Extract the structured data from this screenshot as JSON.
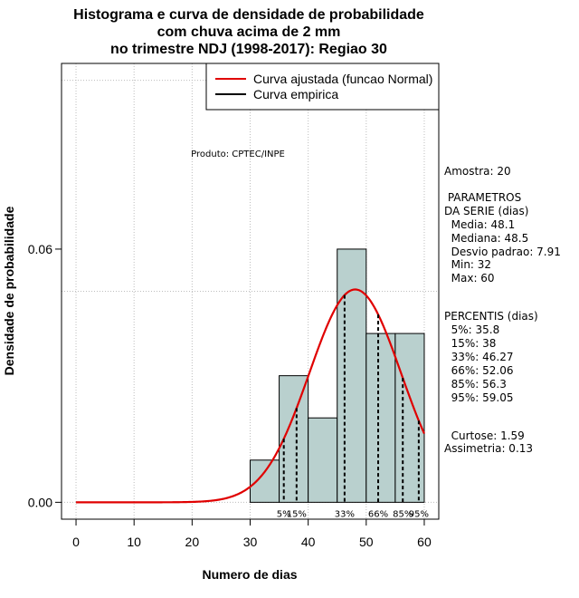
{
  "chart_data": {
    "type": "histogram",
    "title_lines": [
      "Histograma e curva de densidade de probabilidade",
      "com chuva acima de 2 mm",
      "no trimestre NDJ (1998-2017): Regiao 30"
    ],
    "xlabel": "Numero de dias",
    "ylabel": "Densidade de probabilidade",
    "xlim": [
      -2.5,
      62.5
    ],
    "ylim": [
      -0.004,
      0.104
    ],
    "x_ticks": [
      0,
      10,
      20,
      30,
      40,
      50,
      60
    ],
    "x_tick_labels": [
      "0",
      "10",
      "20",
      "30",
      "40",
      "50",
      "60"
    ],
    "y_ticks": [
      0.0,
      0.06
    ],
    "y_tick_labels": [
      "0.00",
      "0.06"
    ],
    "bins": [
      {
        "start": 30,
        "end": 35,
        "density": 0.01
      },
      {
        "start": 35,
        "end": 40,
        "density": 0.03
      },
      {
        "start": 40,
        "end": 45,
        "density": 0.02
      },
      {
        "start": 45,
        "end": 50,
        "density": 0.06
      },
      {
        "start": 50,
        "end": 55,
        "density": 0.04
      },
      {
        "start": 55,
        "end": 60,
        "density": 0.04
      }
    ],
    "bar_color": "#b9d0ce",
    "curve_color": "#e00000",
    "normal_fit": {
      "mean": 48.1,
      "sd": 7.91,
      "x_start": 0,
      "x_end": 60
    },
    "percentile_lines": [
      {
        "label": "5%",
        "x": 35.8
      },
      {
        "label": "15%",
        "x": 38
      },
      {
        "label": "33%",
        "x": 46.27
      },
      {
        "label": "66%",
        "x": 52.06
      },
      {
        "label": "85%",
        "x": 56.3
      },
      {
        "label": "95%",
        "x": 59.05
      }
    ],
    "legend": {
      "position": "top-right",
      "items": [
        {
          "label": "Curva ajustada (funcao Normal)",
          "color": "#e00000"
        },
        {
          "label": "Curva empirica",
          "color": "#000000"
        }
      ]
    },
    "grid": true,
    "product_note": "Produto: CPTEC/INPE"
  },
  "stats_panel": {
    "sample": "Amostra: 20",
    "params_heading_1": " PARAMETROS",
    "params_heading_2": "DA SERIE (dias)",
    "params": [
      "  Media: 48.1",
      "  Mediana: 48.5",
      "  Desvio padrao: 7.91",
      "  Min: 32",
      "  Max: 60"
    ],
    "percentis_heading": "PERCENTIS (dias)",
    "percentis": [
      "  5%: 35.8",
      "  15%: 38",
      "  33%: 46.27",
      "  66%: 52.06",
      "  85%: 56.3",
      "  95%: 59.05"
    ],
    "curtose": "  Curtose: 1.59",
    "assimetria": "Assimetria: 0.13"
  }
}
